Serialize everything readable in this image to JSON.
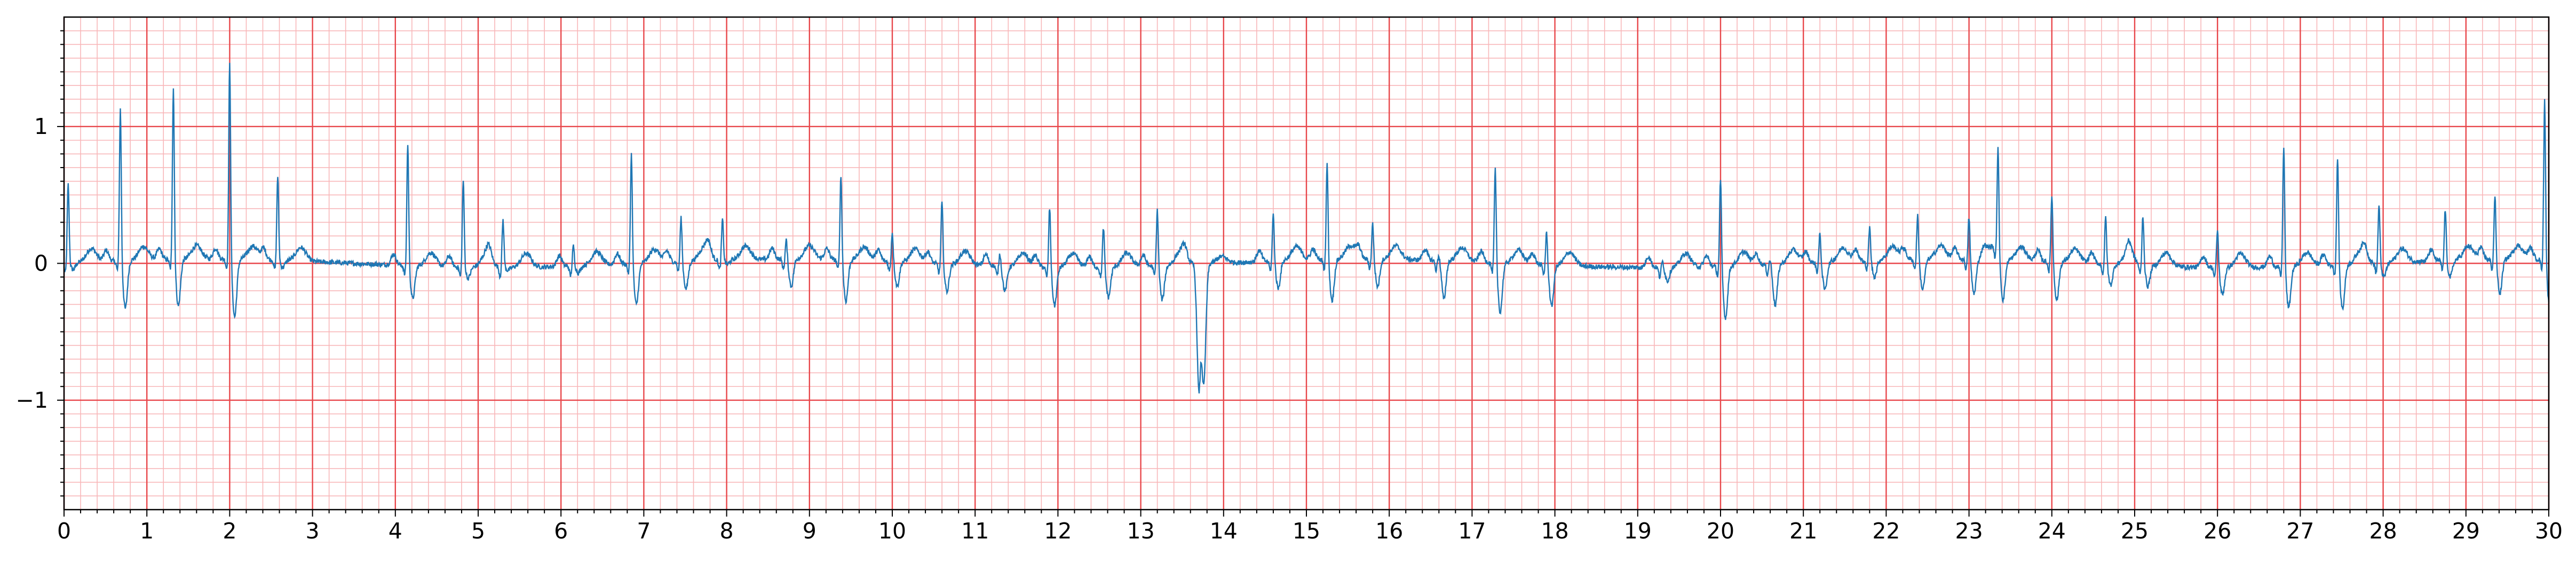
{
  "chart_data": {
    "type": "line",
    "title": "",
    "xlabel": "",
    "ylabel": "",
    "xlim": [
      0,
      30
    ],
    "ylim": [
      -1.8,
      1.8
    ],
    "x_ticks": [
      0,
      1,
      2,
      3,
      4,
      5,
      6,
      7,
      8,
      9,
      10,
      11,
      12,
      13,
      14,
      15,
      16,
      17,
      18,
      19,
      20,
      21,
      22,
      23,
      24,
      25,
      26,
      27,
      28,
      29,
      30
    ],
    "x_tick_labels": [
      "0",
      "1",
      "2",
      "3",
      "4",
      "5",
      "6",
      "7",
      "8",
      "9",
      "10",
      "11",
      "12",
      "13",
      "14",
      "15",
      "16",
      "17",
      "18",
      "19",
      "20",
      "21",
      "22",
      "23",
      "24",
      "25",
      "26",
      "27",
      "28",
      "29",
      "30"
    ],
    "y_ticks": [
      -1,
      0,
      1
    ],
    "y_tick_labels": [
      "−1",
      "0",
      "1"
    ],
    "grid": {
      "major": true,
      "minor": true,
      "x_major_step": 1,
      "x_minor_step": 0.2,
      "y_major_step": 1,
      "y_minor_step": 0.1
    },
    "colors": {
      "line": "#1f77b4",
      "major_grid": "#e8474b",
      "minor_grid": "#f8b7b9",
      "axis": "#000000"
    },
    "series": [
      {
        "sampling": "ECG trace, beat peaks (seconds, millivolt-like units)",
        "baseline": 0,
        "beats": [
          {
            "t": 0.05,
            "r": 0.58,
            "s": -0.05
          },
          {
            "t": 0.68,
            "r": 1.13,
            "s": -0.35
          },
          {
            "t": 1.32,
            "r": 1.28,
            "s": -0.34
          },
          {
            "t": 2.0,
            "r": 1.45,
            "s": -0.42
          },
          {
            "t": 2.58,
            "r": 0.62,
            "s": -0.05
          },
          {
            "t": 4.15,
            "r": 0.9,
            "s": -0.24
          },
          {
            "t": 4.82,
            "r": 0.64,
            "s": -0.08
          },
          {
            "t": 5.3,
            "r": 0.35,
            "s": -0.02
          },
          {
            "t": 6.15,
            "r": 0.15,
            "s": -0.05
          },
          {
            "t": 6.85,
            "r": 0.82,
            "s": -0.3
          },
          {
            "t": 7.45,
            "r": 0.33,
            "s": -0.2
          },
          {
            "t": 7.95,
            "r": 0.3,
            "s": -0.03
          },
          {
            "t": 8.72,
            "r": 0.15,
            "s": -0.2
          },
          {
            "t": 9.38,
            "r": 0.63,
            "s": -0.3
          },
          {
            "t": 10.0,
            "r": 0.22,
            "s": -0.18
          },
          {
            "t": 10.6,
            "r": 0.46,
            "s": -0.2
          },
          {
            "t": 11.3,
            "r": 0.1,
            "s": -0.18
          },
          {
            "t": 11.9,
            "r": 0.45,
            "s": -0.28
          },
          {
            "t": 12.55,
            "r": 0.3,
            "s": -0.22
          },
          {
            "t": 13.2,
            "r": 0.42,
            "s": -0.25
          },
          {
            "t": 13.7,
            "r": -0.88,
            "s": -0.88
          },
          {
            "t": 14.6,
            "r": 0.35,
            "s": -0.2
          },
          {
            "t": 15.25,
            "r": 0.71,
            "s": -0.3
          },
          {
            "t": 15.8,
            "r": 0.27,
            "s": -0.2
          },
          {
            "t": 16.6,
            "r": 0.05,
            "s": -0.28
          },
          {
            "t": 17.28,
            "r": 0.7,
            "s": -0.36
          },
          {
            "t": 17.9,
            "r": 0.25,
            "s": -0.3
          },
          {
            "t": 19.3,
            "r": 0.05,
            "s": -0.1
          },
          {
            "t": 20.0,
            "r": 0.65,
            "s": -0.38
          },
          {
            "t": 20.6,
            "r": 0.05,
            "s": -0.3
          },
          {
            "t": 21.2,
            "r": 0.22,
            "s": -0.2
          },
          {
            "t": 21.8,
            "r": 0.25,
            "s": -0.12
          },
          {
            "t": 22.38,
            "r": 0.33,
            "s": -0.22
          },
          {
            "t": 23.0,
            "r": 0.32,
            "s": -0.25
          },
          {
            "t": 23.35,
            "r": 0.78,
            "s": -0.3
          },
          {
            "t": 24.0,
            "r": 0.5,
            "s": -0.28
          },
          {
            "t": 24.65,
            "r": 0.35,
            "s": -0.15
          },
          {
            "t": 25.1,
            "r": 0.37,
            "s": -0.15
          },
          {
            "t": 26.0,
            "r": 0.28,
            "s": -0.2
          },
          {
            "t": 26.8,
            "r": 0.9,
            "s": -0.3
          },
          {
            "t": 27.45,
            "r": 0.8,
            "s": -0.32
          },
          {
            "t": 27.95,
            "r": 0.43,
            "s": -0.1
          },
          {
            "t": 28.75,
            "r": 0.38,
            "s": -0.12
          },
          {
            "t": 29.35,
            "r": 0.48,
            "s": -0.25
          },
          {
            "t": 29.95,
            "r": 1.18,
            "s": -0.35
          }
        ]
      }
    ]
  }
}
